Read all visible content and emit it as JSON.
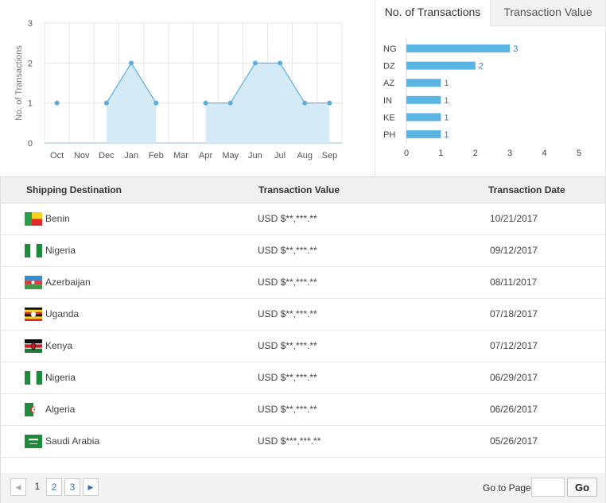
{
  "line_chart": {
    "chart_data": {
      "type": "area",
      "categories": [
        "Oct",
        "Nov",
        "Dec",
        "Jan",
        "Feb",
        "Mar",
        "Apr",
        "May",
        "Jun",
        "Jul",
        "Aug",
        "Sep"
      ],
      "values": [
        1,
        null,
        1,
        2,
        1,
        null,
        1,
        1,
        2,
        2,
        1,
        1
      ],
      "ylabel": "No. of Transactions",
      "xlabel": "",
      "ylim": [
        0,
        3
      ],
      "yticks": [
        "0",
        "1",
        "2",
        "3"
      ],
      "grid": true,
      "colors": {
        "line": "#5aaee0",
        "fill": "#d6ebf8",
        "grid": "#e6e6e6"
      }
    }
  },
  "bar_tabs": {
    "active": "No. of Transactions",
    "inactive": "Transaction Value"
  },
  "bar_chart": {
    "chart_data": {
      "type": "bar",
      "orientation": "horizontal",
      "categories": [
        "NG",
        "DZ",
        "AZ",
        "IN",
        "KE",
        "PH"
      ],
      "values": [
        3,
        2,
        1,
        1,
        1,
        1
      ],
      "labels": [
        "3",
        "2",
        "1",
        "1",
        "1",
        "1"
      ],
      "xlim": [
        0,
        5
      ],
      "xticks": [
        "0",
        "1",
        "2",
        "3",
        "4",
        "5"
      ],
      "color": "#5bb5e3"
    }
  },
  "table": {
    "headers": [
      "Shipping Destination",
      "Transaction Value",
      "Transaction Date"
    ],
    "rows": [
      {
        "country": "Benin",
        "flag": "benin-flag-icon",
        "value": "USD $**,***.**",
        "date": "10/21/2017"
      },
      {
        "country": "Nigeria",
        "flag": "nigeria-flag-icon",
        "value": "USD $**,***.**",
        "date": "09/12/2017"
      },
      {
        "country": "Azerbaijan",
        "flag": "azerbaijan-flag-icon",
        "value": "USD $**,***.**",
        "date": "08/11/2017"
      },
      {
        "country": "Uganda",
        "flag": "uganda-flag-icon",
        "value": "USD $**,***.**",
        "date": "07/18/2017"
      },
      {
        "country": "Kenya",
        "flag": "kenya-flag-icon",
        "value": "USD $**,***.**",
        "date": "07/12/2017"
      },
      {
        "country": "Nigeria",
        "flag": "nigeria-flag-icon",
        "value": "USD $**,***.**",
        "date": "06/29/2017"
      },
      {
        "country": "Algeria",
        "flag": "algeria-flag-icon",
        "value": "USD $**,***.**",
        "date": "06/26/2017"
      },
      {
        "country": "Saudi Arabia",
        "flag": "saudi-arabia-flag-icon",
        "value": "USD $***,***.**",
        "date": "05/26/2017"
      }
    ]
  },
  "pagination": {
    "prev_icon": "◀",
    "next_icon": "▶",
    "pages": [
      "1",
      "2",
      "3"
    ],
    "current": "1",
    "goto_label": "Go to Page",
    "go_button": "Go"
  }
}
